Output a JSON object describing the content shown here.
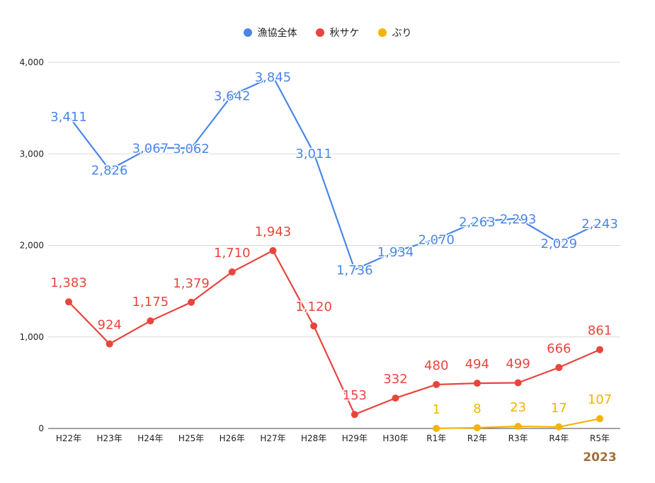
{
  "chart_data": {
    "type": "line",
    "categories": [
      "H22年",
      "H23年",
      "H24年",
      "H25年",
      "H26年",
      "H27年",
      "H28年",
      "H29年",
      "H30年",
      "R1年",
      "R2年",
      "R3年",
      "R4年",
      "R5年"
    ],
    "ylim": [
      0,
      4000
    ],
    "yticks": [
      0,
      1000,
      2000,
      3000,
      4000
    ],
    "ytick_labels": [
      "0",
      "1,000",
      "2,000",
      "3,000",
      "4,000"
    ],
    "grid": true,
    "legend_position": "top-center",
    "series": [
      {
        "name": "漁協全体",
        "color": "#4a86e8",
        "values": [
          3411,
          2826,
          3067,
          3062,
          3642,
          3845,
          3011,
          1736,
          1934,
          2070,
          2263,
          2293,
          2029,
          2243
        ],
        "labels": [
          "3,411",
          "2,826",
          "3,067",
          "3,062",
          "3,642",
          "3,845",
          "3,011",
          "1,736",
          "1,934",
          "2,070",
          "2,263",
          "2,293",
          "2,029",
          "2,243"
        ],
        "show_markers": false
      },
      {
        "name": "秋サケ",
        "color": "#e8453c",
        "values": [
          1383,
          924,
          1175,
          1379,
          1710,
          1943,
          1120,
          153,
          332,
          480,
          494,
          499,
          666,
          861
        ],
        "labels": [
          "1,383",
          "924",
          "1,175",
          "1,379",
          "1,710",
          "1,943",
          "1,120",
          "153",
          "332",
          "480",
          "494",
          "499",
          "666",
          "861"
        ],
        "show_markers": true
      },
      {
        "name": "ぶり",
        "color": "#f4b400",
        "values": [
          null,
          null,
          null,
          null,
          null,
          null,
          null,
          null,
          null,
          1,
          8,
          23,
          17,
          107
        ],
        "labels": [
          null,
          null,
          null,
          null,
          null,
          null,
          null,
          null,
          null,
          "1",
          "8",
          "23",
          "17",
          "107"
        ],
        "show_markers": true
      }
    ],
    "annotation": "2023"
  }
}
